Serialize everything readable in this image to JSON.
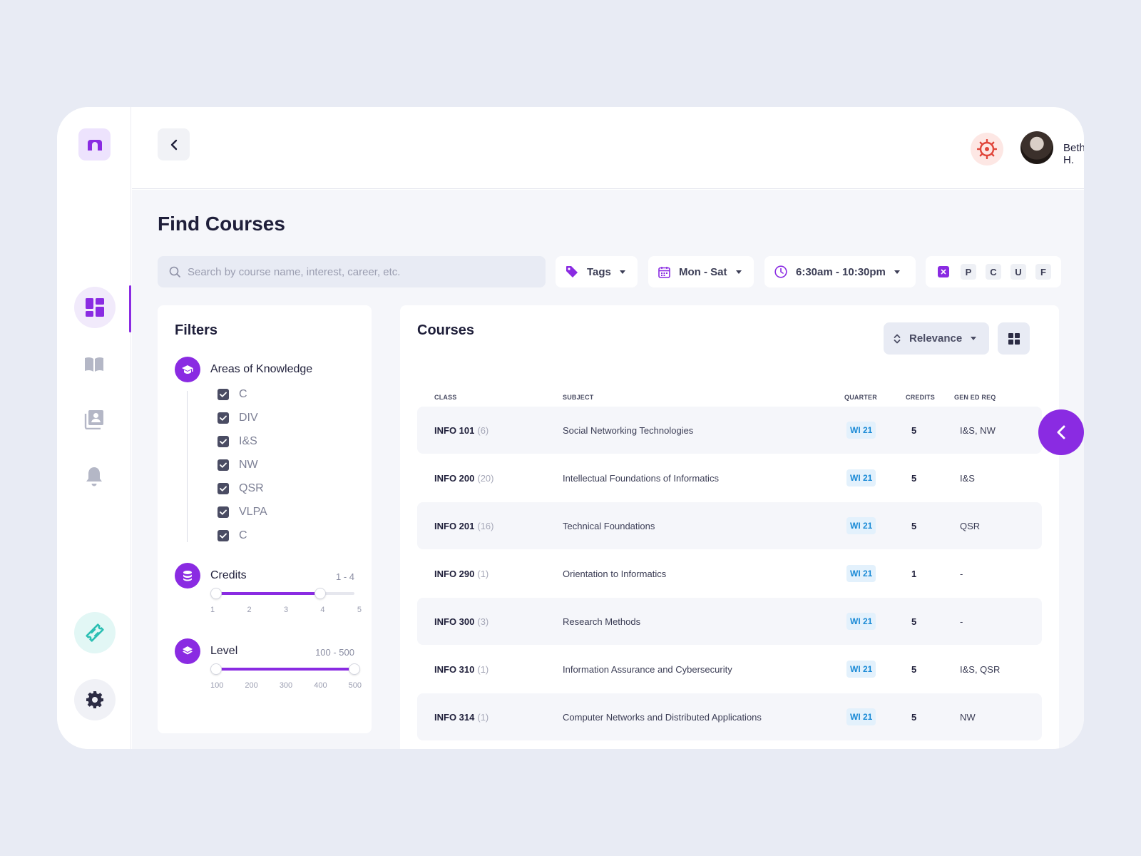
{
  "header": {
    "user_name": "Beth H."
  },
  "page": {
    "title": "Find Courses"
  },
  "search": {
    "placeholder": "Search by course name, interest, career, etc."
  },
  "toolbar": {
    "tags_label": "Tags",
    "days_label": "Mon - Sat",
    "time_label": "6:30am - 10:30pm",
    "grades": [
      "P",
      "C",
      "U",
      "F"
    ]
  },
  "filters": {
    "title": "Filters",
    "areas": {
      "label": "Areas of Knowledge",
      "options": [
        "C",
        "DIV",
        "I&S",
        "NW",
        "QSR",
        "VLPA",
        "C"
      ]
    },
    "credits": {
      "label": "Credits",
      "range_text": "1 - 4",
      "ticks": [
        "1",
        "2",
        "3",
        "4",
        "5"
      ],
      "min": 1,
      "max": 5,
      "selected": [
        1,
        4
      ]
    },
    "level": {
      "label": "Level",
      "range_text": "100 - 500",
      "ticks": [
        "100",
        "200",
        "300",
        "400",
        "500"
      ],
      "min": 100,
      "max": 500,
      "selected": [
        100,
        500
      ]
    }
  },
  "courses": {
    "title": "Courses",
    "sort_label": "Relevance",
    "columns": [
      "Class",
      "Subject",
      "Quarter",
      "Credits",
      "Gen Ed Req"
    ],
    "rows": [
      {
        "class": "INFO 101",
        "sections": "(6)",
        "subject": "Social Networking Technologies",
        "quarter": "WI 21",
        "credits": "5",
        "gened": "I&S, NW"
      },
      {
        "class": "INFO 200",
        "sections": "(20)",
        "subject": "Intellectual Foundations of Informatics",
        "quarter": "WI 21",
        "credits": "5",
        "gened": "I&S"
      },
      {
        "class": "INFO 201",
        "sections": "(16)",
        "subject": "Technical Foundations",
        "quarter": "WI 21",
        "credits": "5",
        "gened": "QSR"
      },
      {
        "class": "INFO 290",
        "sections": "(1)",
        "subject": "Orientation to Informatics",
        "quarter": "WI 21",
        "credits": "1",
        "gened": "-"
      },
      {
        "class": "INFO 300",
        "sections": "(3)",
        "subject": "Research Methods",
        "quarter": "WI 21",
        "credits": "5",
        "gened": "-"
      },
      {
        "class": "INFO 310",
        "sections": "(1)",
        "subject": "Information Assurance and Cybersecurity",
        "quarter": "WI 21",
        "credits": "5",
        "gened": "I&S, QSR"
      },
      {
        "class": "INFO 314",
        "sections": "(1)",
        "subject": "Computer Networks and Distributed Applications",
        "quarter": "WI 21",
        "credits": "5",
        "gened": "NW"
      }
    ]
  },
  "colors": {
    "accent": "#8a2be2",
    "teal": "#2bbfb3",
    "quarter_badge_text": "#1a8ad6",
    "quarter_badge_bg": "#e3f1fc",
    "org_red": "#e0453a"
  },
  "icons": {
    "rail": [
      "app-logo-icon",
      "dashboard-icon",
      "book-icon",
      "contacts-icon",
      "bell-icon",
      "ticket-icon",
      "gear-icon"
    ],
    "toolbar": [
      "search-icon",
      "tag-icon",
      "calendar-icon",
      "clock-icon",
      "close-icon"
    ]
  }
}
